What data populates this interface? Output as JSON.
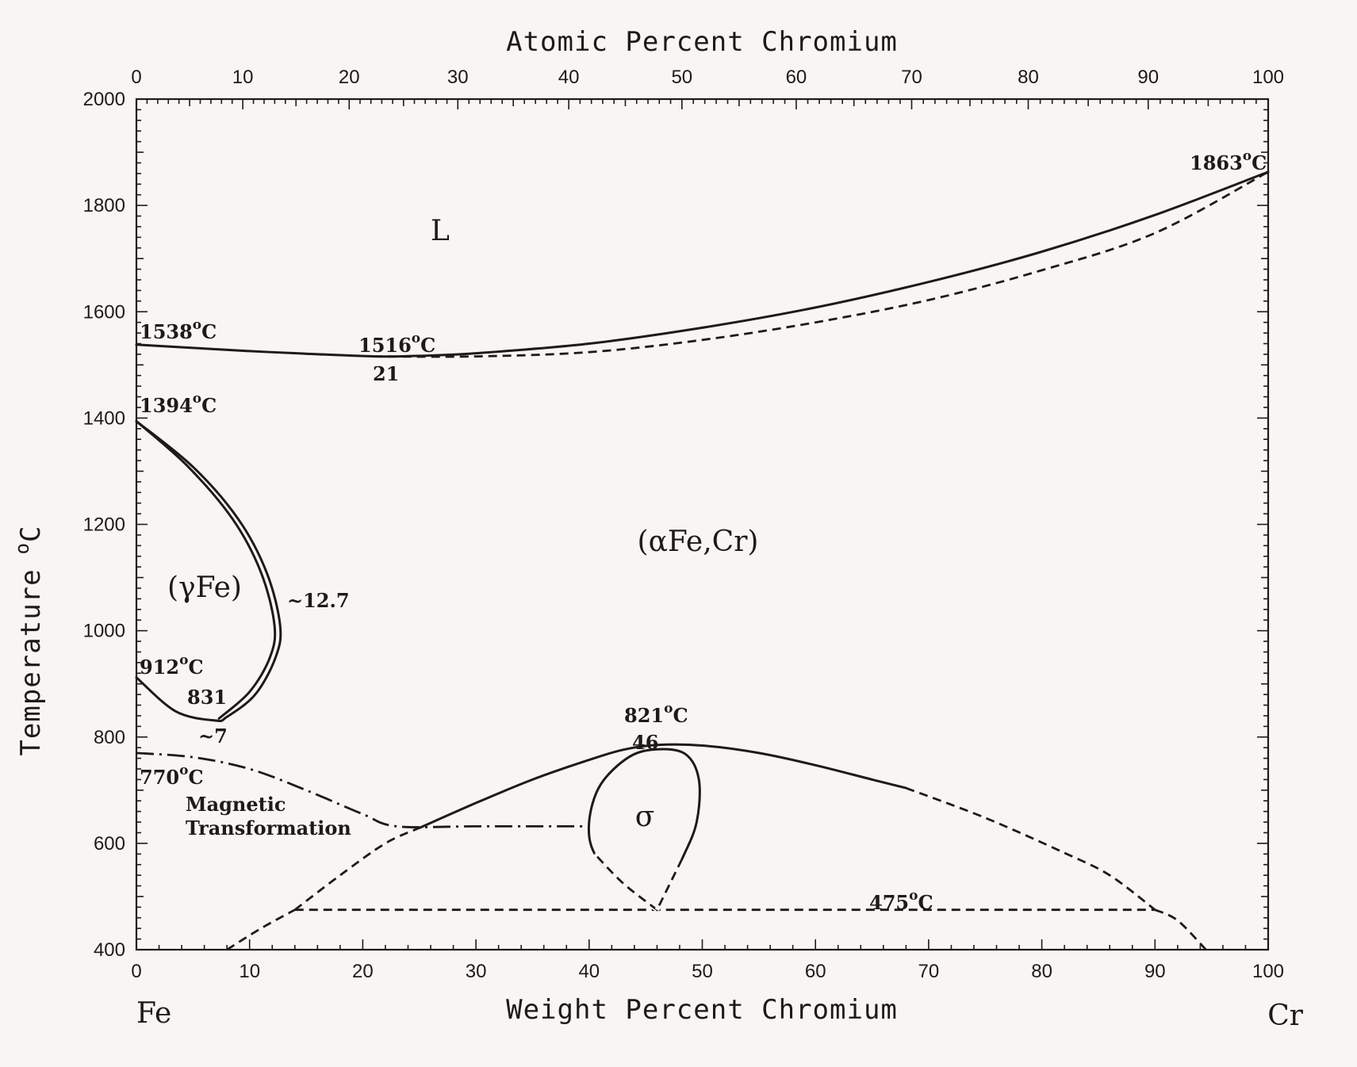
{
  "chart_data": {
    "type": "phase-diagram",
    "x_bottom": {
      "label": "Weight Percent Chromium",
      "range": [
        0,
        100
      ],
      "ticks": [
        "0",
        "10",
        "20",
        "30",
        "40",
        "50",
        "60",
        "70",
        "80",
        "90",
        "100"
      ],
      "end_labels": {
        "left": "Fe",
        "right": "Cr"
      }
    },
    "x_top": {
      "label": "Atomic Percent Chromium",
      "ticks": [
        {
          "label": "0",
          "wt": 0
        },
        {
          "label": "10",
          "wt": 9.4
        },
        {
          "label": "20",
          "wt": 18.8
        },
        {
          "label": "30",
          "wt": 28.4
        },
        {
          "label": "40",
          "wt": 38.2
        },
        {
          "label": "50",
          "wt": 48.2
        },
        {
          "label": "60",
          "wt": 58.3
        },
        {
          "label": "70",
          "wt": 68.5
        },
        {
          "label": "80",
          "wt": 78.8
        },
        {
          "label": "90",
          "wt": 89.4
        },
        {
          "label": "100",
          "wt": 100
        }
      ]
    },
    "y": {
      "label": "Temperature",
      "unit": "oC",
      "range": [
        400,
        2000
      ],
      "ticks": [
        "400",
        "600",
        "800",
        "1000",
        "1200",
        "1400",
        "1600",
        "1800",
        "2000"
      ]
    },
    "phases": [
      "L",
      "(αFe,Cr)",
      "(γFe)",
      "σ"
    ],
    "annotations": {
      "t1863": "1863",
      "t1538": "1538",
      "t1516": "1516",
      "comp21": "21",
      "t1394": "1394",
      "t912": "912",
      "comp831": "831",
      "comp7": "~7",
      "comp127": "~12.7",
      "t821": "821",
      "comp46": "46",
      "t770": "770",
      "magnetic": [
        "Magnetic",
        "Transformation"
      ],
      "t475": "475",
      "deg": "o",
      "degC": "C"
    },
    "curves": {
      "liquidus": [
        [
          0,
          1538
        ],
        [
          5,
          1532
        ],
        [
          10,
          1526
        ],
        [
          15,
          1521
        ],
        [
          21,
          1516
        ],
        [
          25,
          1517
        ],
        [
          30,
          1522
        ],
        [
          40,
          1540
        ],
        [
          50,
          1570
        ],
        [
          60,
          1608
        ],
        [
          70,
          1656
        ],
        [
          80,
          1713
        ],
        [
          90,
          1782
        ],
        [
          100,
          1863
        ]
      ],
      "solidus": [
        [
          21,
          1516
        ],
        [
          30,
          1516
        ],
        [
          40,
          1524
        ],
        [
          50,
          1547
        ],
        [
          60,
          1580
        ],
        [
          70,
          1622
        ],
        [
          80,
          1678
        ],
        [
          90,
          1748
        ],
        [
          100,
          1863
        ]
      ],
      "gamma_loop_outer": [
        [
          0,
          1394
        ],
        [
          5,
          1308
        ],
        [
          9,
          1210
        ],
        [
          11.5,
          1110
        ],
        [
          12.7,
          1010
        ],
        [
          12.3,
          950
        ],
        [
          10.5,
          880
        ],
        [
          8,
          838
        ],
        [
          7,
          831
        ],
        [
          3.5,
          848
        ],
        [
          0,
          912
        ]
      ],
      "gamma_loop_inner": [
        [
          0,
          1394
        ],
        [
          4.5,
          1310
        ],
        [
          8.5,
          1210
        ],
        [
          11,
          1110
        ],
        [
          12.2,
          1010
        ],
        [
          11.8,
          950
        ],
        [
          10,
          885
        ],
        [
          7.3,
          835
        ]
      ],
      "alpha_sigma_left_solid": [
        [
          25,
          629
        ],
        [
          30,
          676
        ],
        [
          35,
          720
        ],
        [
          40,
          757
        ],
        [
          43,
          776
        ],
        [
          46,
          785
        ],
        [
          50,
          784
        ],
        [
          55,
          770
        ],
        [
          60,
          747
        ],
        [
          65,
          720
        ],
        [
          68,
          704
        ]
      ],
      "alpha_sigma_left_dash": [
        [
          14,
          475
        ],
        [
          18,
          540
        ],
        [
          22,
          600
        ],
        [
          25,
          629
        ]
      ],
      "alpha_sigma_right_dash": [
        [
          68,
          704
        ],
        [
          75,
          648
        ],
        [
          82,
          582
        ],
        [
          86,
          540
        ],
        [
          90,
          475
        ]
      ],
      "bottom_dash_left": [
        [
          8,
          400
        ],
        [
          11,
          440
        ],
        [
          14,
          475
        ]
      ],
      "bottom_dash_right": [
        [
          90,
          475
        ],
        [
          92,
          455
        ],
        [
          94.5,
          400
        ]
      ],
      "sigma_loop": [
        [
          46,
          475
        ],
        [
          43,
          525
        ],
        [
          40.5,
          580
        ],
        [
          40,
          640
        ],
        [
          41,
          710
        ],
        [
          43.5,
          762
        ],
        [
          46,
          777
        ],
        [
          48.5,
          768
        ],
        [
          49.7,
          720
        ],
        [
          49.5,
          640
        ],
        [
          48.2,
          570
        ],
        [
          46,
          475
        ]
      ],
      "eutectoid_475": [
        [
          14,
          475
        ],
        [
          90,
          475
        ]
      ],
      "magnetic_line": [
        [
          0,
          770
        ],
        [
          5,
          762
        ],
        [
          10,
          740
        ],
        [
          15,
          700
        ],
        [
          20,
          655
        ],
        [
          23,
          632
        ],
        [
          30,
          632
        ],
        [
          40,
          632
        ]
      ]
    }
  }
}
